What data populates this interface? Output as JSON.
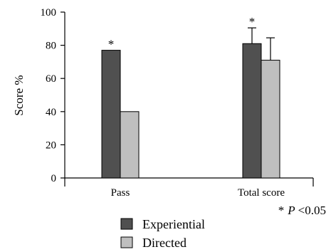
{
  "chart_data": {
    "type": "bar",
    "title": "",
    "xlabel": "",
    "ylabel": "Score %",
    "ylim": [
      0,
      100
    ],
    "yticks": [
      "0",
      "20",
      "40",
      "60",
      "80",
      "100"
    ],
    "grid": false,
    "legend_position": "bottom-center",
    "categories": [
      "Pass",
      "Total score"
    ],
    "series": [
      {
        "name": "Experiential",
        "color": "#505050",
        "values": [
          77,
          81
        ],
        "errors": [
          null,
          9.5
        ]
      },
      {
        "name": "Directed",
        "color": "#bfbfbf",
        "values": [
          40,
          71
        ],
        "errors": [
          null,
          13.5
        ]
      }
    ],
    "annotations": {
      "significance_marks": [
        "*",
        "*"
      ],
      "note_star": "*",
      "note_p": "P",
      "note_rest": "<0.05"
    }
  }
}
